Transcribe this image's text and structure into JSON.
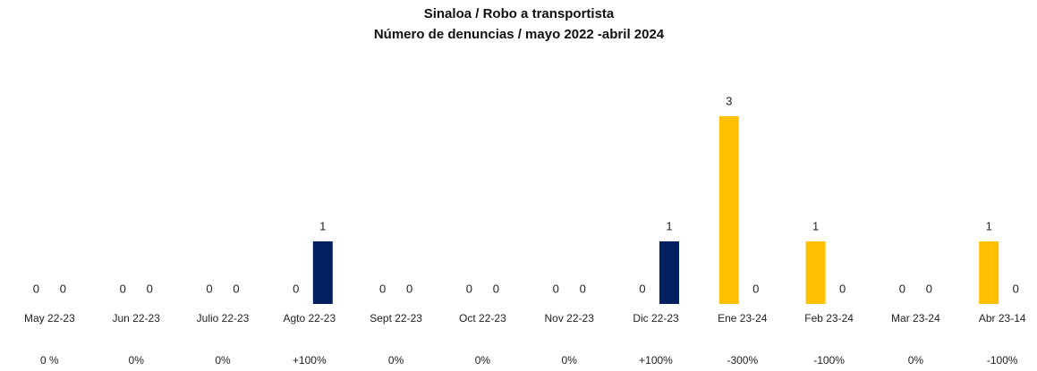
{
  "chart_data": {
    "type": "bar",
    "title": "Sinaloa / Robo a transportista",
    "subtitle": "Número de denuncias / mayo 2022 -abril 2024",
    "categories": [
      "May 22-23",
      "Jun 22-23",
      "Julio 22-23",
      "Agto 22-23",
      "Sept 22-23",
      "Oct 22-23",
      "Nov 22-23",
      "Dic 22-23",
      "Ene 23-24",
      "Feb 23-24",
      "Mar 23-24",
      "Abr 23-14"
    ],
    "series": [
      {
        "color": "#ffc000",
        "values": [
          0,
          0,
          0,
          0,
          0,
          0,
          0,
          0,
          3,
          1,
          0,
          1
        ]
      },
      {
        "color": "#002060",
        "values": [
          0,
          0,
          0,
          1,
          0,
          0,
          0,
          1,
          0,
          0,
          0,
          0
        ]
      }
    ],
    "annotations": [
      "0 %",
      "0%",
      "0%",
      "+100%",
      "0%",
      "0%",
      "0%",
      "+100%",
      "-300%",
      "-100%",
      "0%",
      "-100%"
    ],
    "ylim": [
      0,
      3.3
    ],
    "grid": false
  }
}
